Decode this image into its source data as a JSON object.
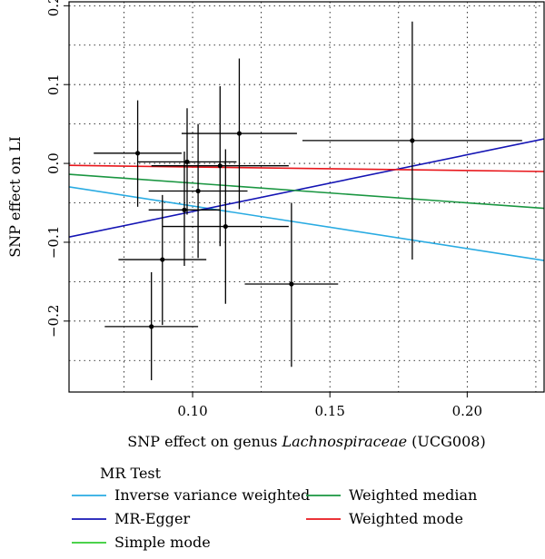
{
  "chart_data": {
    "type": "scatter",
    "xlabel_prefix": "SNP effect on genus ",
    "xlabel_italic": "Lachnospiraceae",
    "xlabel_suffix": " (UCG008)",
    "ylabel": "SNP effect on LI",
    "xlim": [
      0.055,
      0.228
    ],
    "ylim": [
      -0.29,
      0.205
    ],
    "xticks": [
      0.1,
      0.15,
      0.2
    ],
    "xtick_labels": [
      "0.10",
      "0.15",
      "0.20"
    ],
    "yticks": [
      -0.2,
      -0.1,
      0.0,
      0.1,
      0.2
    ],
    "ytick_labels": [
      "−0.2",
      "−0.1",
      "0.0",
      "0.1",
      "0.2"
    ],
    "grid": true,
    "grid_style": "dotted",
    "points": [
      {
        "x": 0.08,
        "y": 0.013,
        "xerr": 0.016,
        "ylo": -0.055,
        "yhi": 0.08
      },
      {
        "x": 0.098,
        "y": 0.002,
        "xerr": 0.018,
        "ylo": -0.065,
        "yhi": 0.07
      },
      {
        "x": 0.117,
        "y": 0.038,
        "xerr": 0.021,
        "ylo": -0.058,
        "yhi": 0.133
      },
      {
        "x": 0.18,
        "y": 0.029,
        "xerr": 0.04,
        "ylo": -0.122,
        "yhi": 0.18
      },
      {
        "x": 0.11,
        "y": -0.003,
        "xerr": 0.025,
        "ylo": -0.105,
        "yhi": 0.098
      },
      {
        "x": 0.102,
        "y": -0.035,
        "xerr": 0.018,
        "ylo": -0.12,
        "yhi": 0.05
      },
      {
        "x": 0.097,
        "y": -0.059,
        "xerr": 0.013,
        "ylo": -0.13,
        "yhi": 0.015
      },
      {
        "x": 0.112,
        "y": -0.08,
        "xerr": 0.023,
        "ylo": -0.178,
        "yhi": 0.018
      },
      {
        "x": 0.089,
        "y": -0.122,
        "xerr": 0.016,
        "ylo": -0.205,
        "yhi": -0.04
      },
      {
        "x": 0.136,
        "y": -0.153,
        "xerr": 0.017,
        "ylo": -0.258,
        "yhi": -0.05
      },
      {
        "x": 0.085,
        "y": -0.207,
        "xerr": 0.017,
        "ylo": -0.275,
        "yhi": -0.138
      }
    ],
    "point_color": "#000000",
    "legend_title": "MR Test",
    "legend_placement": "bottom",
    "series": [
      {
        "name": "Inverse variance weighted",
        "color": "#29ABE2",
        "slope": -0.54,
        "intercept": 0.0
      },
      {
        "name": "MR-Egger",
        "color": "#1414B4",
        "slope": 0.72,
        "intercept": -0.133
      },
      {
        "name": "Simple mode",
        "color": "#33CC33",
        "slope": null,
        "intercept": null
      },
      {
        "name": "Weighted median",
        "color": "#1A9641",
        "slope": -0.25,
        "intercept": 0.0
      },
      {
        "name": "Weighted mode",
        "color": "#E8161B",
        "slope": -0.045,
        "intercept": 0.0
      }
    ]
  }
}
